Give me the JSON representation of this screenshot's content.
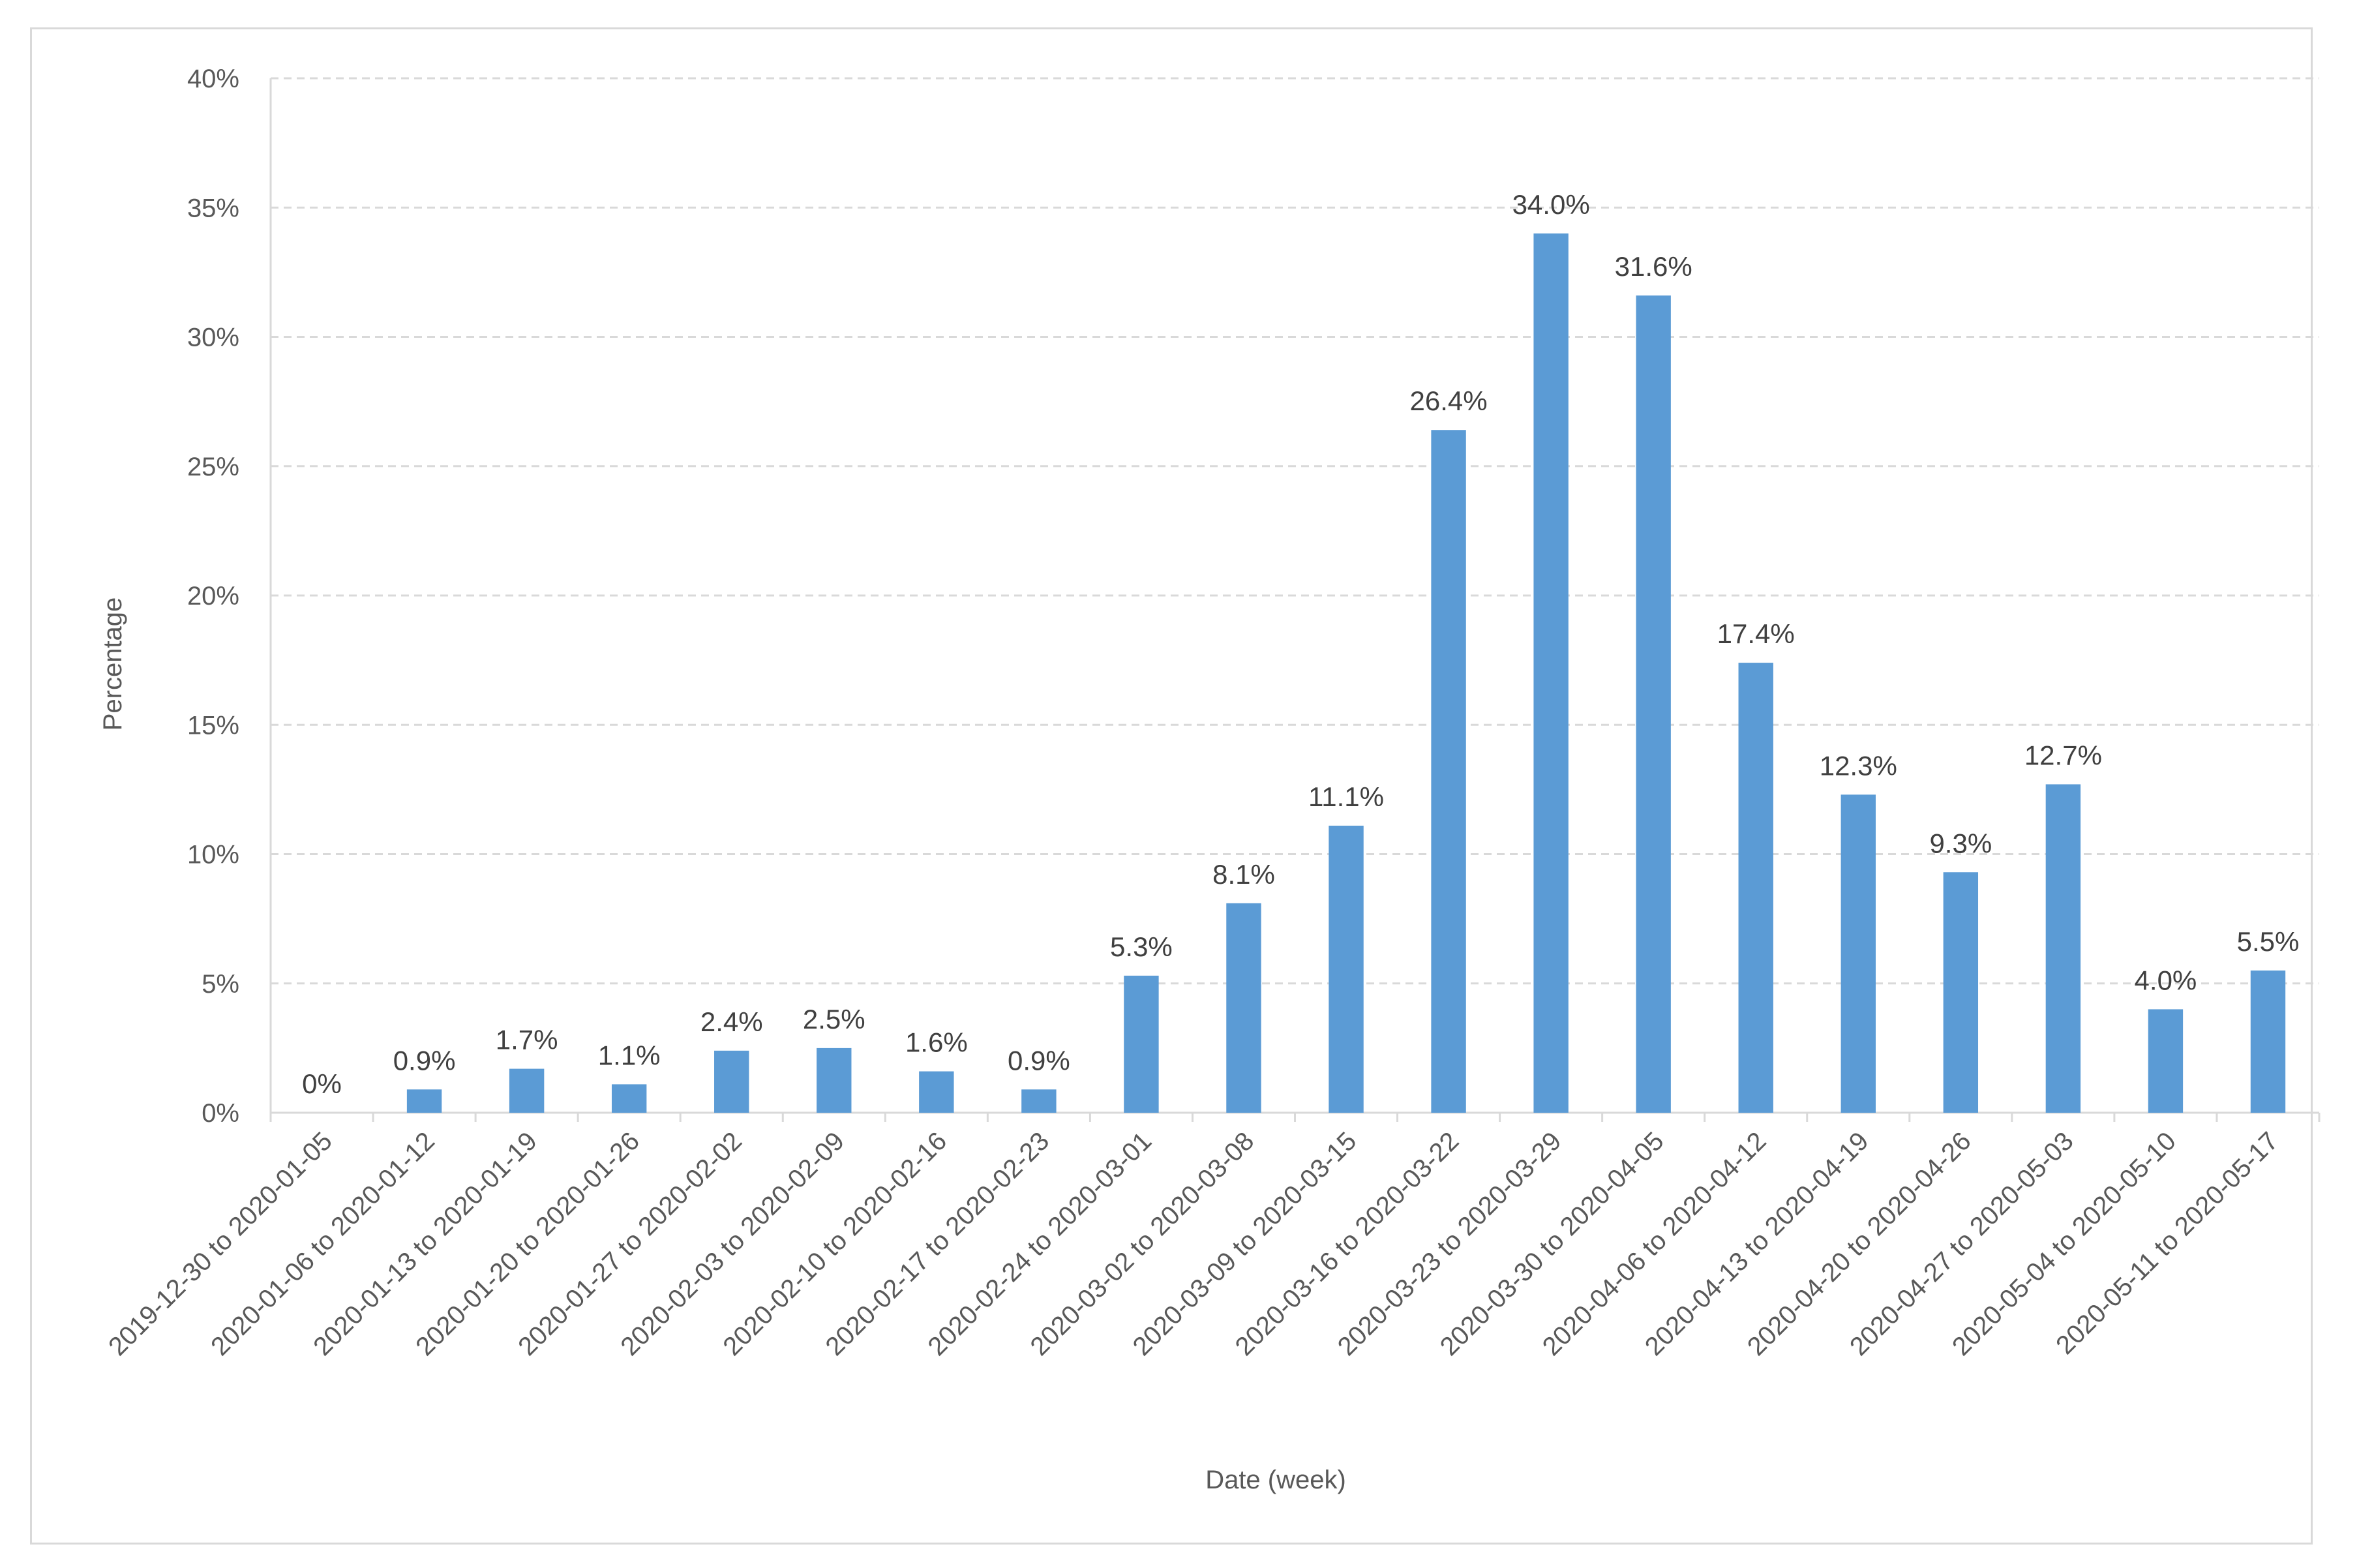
{
  "chart_data": {
    "type": "bar",
    "title": "",
    "xlabel": "Date (week)",
    "ylabel": "Percentage",
    "ylim": [
      0,
      40
    ],
    "yticks": [
      "0%",
      "5%",
      "10%",
      "15%",
      "20%",
      "25%",
      "30%",
      "35%",
      "40%"
    ],
    "grid": "horizontal dashed",
    "bar_color": "#5b9bd5",
    "categories": [
      "2019-12-30 to 2020-01-05",
      "2020-01-06 to 2020-01-12",
      "2020-01-13 to 2020-01-19",
      "2020-01-20 to 2020-01-26",
      "2020-01-27 to 2020-02-02",
      "2020-02-03 to 2020-02-09",
      "2020-02-10 to 2020-02-16",
      "2020-02-17 to 2020-02-23",
      "2020-02-24 to 2020-03-01",
      "2020-03-02 to 2020-03-08",
      "2020-03-09 to 2020-03-15",
      "2020-03-16 to 2020-03-22",
      "2020-03-23 to 2020-03-29",
      "2020-03-30 to 2020-04-05",
      "2020-04-06 to 2020-04-12",
      "2020-04-13 to 2020-04-19",
      "2020-04-20 to 2020-04-26",
      "2020-04-27 to 2020-05-03",
      "2020-05-04 to 2020-05-10",
      "2020-05-11 to 2020-05-17"
    ],
    "values": [
      0,
      0.9,
      1.7,
      1.1,
      2.4,
      2.5,
      1.6,
      0.9,
      5.3,
      8.1,
      11.1,
      26.4,
      34.0,
      31.6,
      17.4,
      12.3,
      9.3,
      12.7,
      4.0,
      5.5
    ],
    "data_labels": [
      "0%",
      "0.9%",
      "1.7%",
      "1.1%",
      "2.4%",
      "2.5%",
      "1.6%",
      "0.9%",
      "5.3%",
      "8.1%",
      "11.1%",
      "26.4%",
      "34.0%",
      "31.6%",
      "17.4%",
      "12.3%",
      "9.3%",
      "12.7%",
      "4.0%",
      "5.5%"
    ]
  }
}
